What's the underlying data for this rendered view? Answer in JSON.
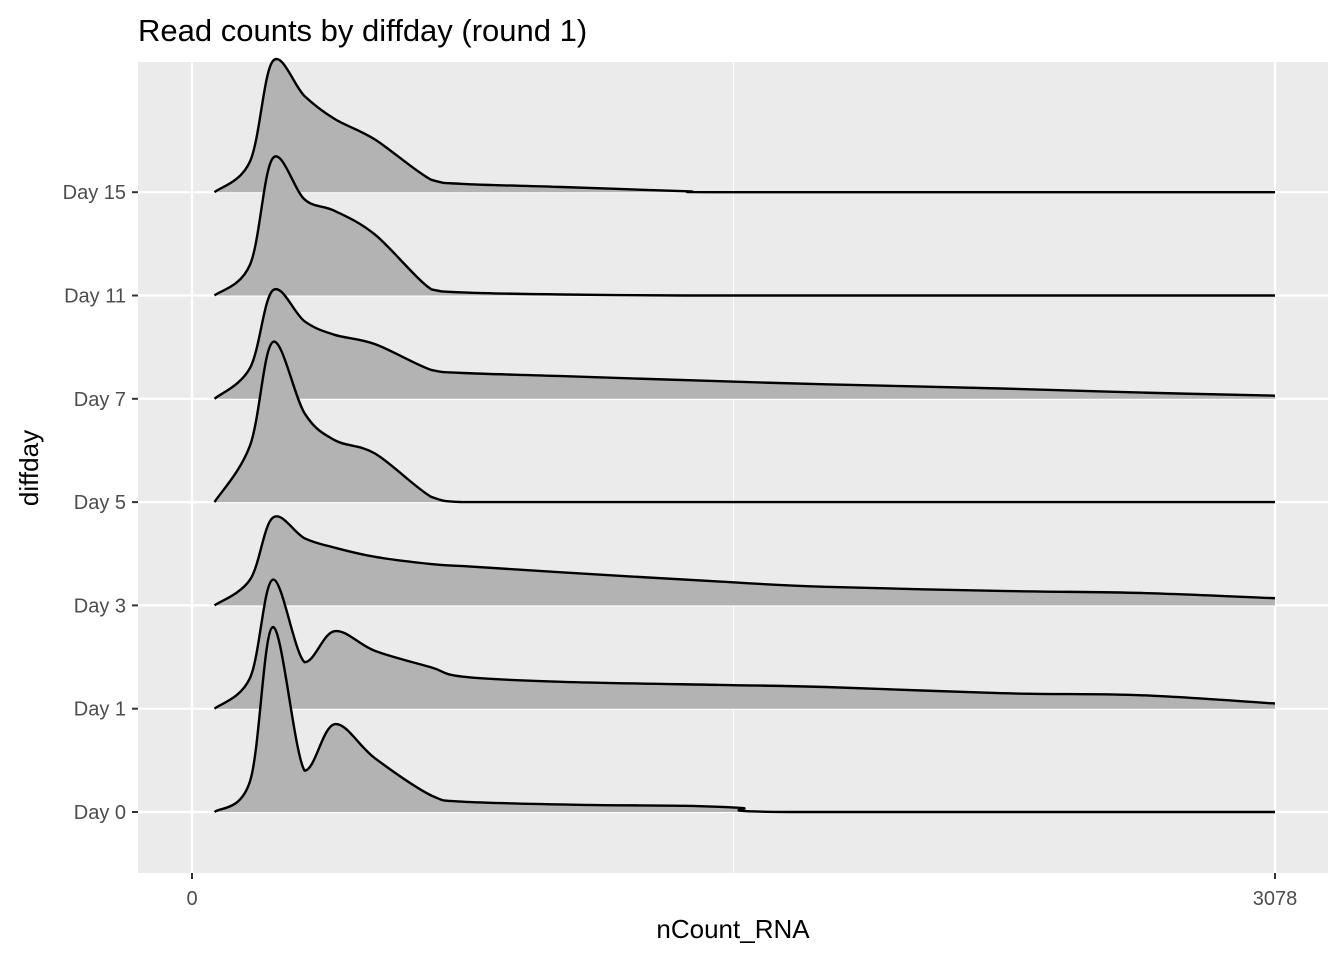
{
  "chart_data": {
    "type": "ridgeline",
    "title": "Read counts by diffday (round 1)",
    "xlabel": "nCount_RNA",
    "ylabel": "diffday",
    "xlim": [
      0,
      3078
    ],
    "x_ticks": [
      0,
      3078
    ],
    "x_tick_labels": [
      "0",
      "3078"
    ],
    "categories": [
      "Day 0",
      "Day 1",
      "Day 3",
      "Day 5",
      "Day 7",
      "Day 11",
      "Day 15"
    ],
    "grid": true,
    "fill_color": "#b3b3b3",
    "line_color": "#000000",
    "panel_color": "#ebebeb",
    "x_unit": "nCount_RNA",
    "height_unit": "category spacings",
    "series": [
      {
        "name": "Day 0",
        "x": [
          64,
          165,
          230,
          320,
          405,
          520,
          680,
          770,
          1100,
          1400,
          1560,
          1700,
          3078
        ],
        "height": [
          0,
          0.3,
          1.79,
          0.4,
          0.85,
          0.52,
          0.16,
          0.1,
          0.07,
          0.06,
          0.04,
          0,
          0
        ]
      },
      {
        "name": "Day 1",
        "x": [
          64,
          165,
          230,
          320,
          405,
          520,
          680,
          770,
          1050,
          1500,
          1800,
          2300,
          2700,
          3078
        ],
        "height": [
          0,
          0.3,
          1.25,
          0.45,
          0.75,
          0.56,
          0.4,
          0.31,
          0.26,
          0.23,
          0.21,
          0.15,
          0.13,
          0.05
        ]
      },
      {
        "name": "Day 3",
        "x": [
          64,
          165,
          230,
          320,
          405,
          520,
          680,
          770,
          1050,
          1500,
          1800,
          2300,
          2700,
          3078
        ],
        "height": [
          0,
          0.25,
          0.85,
          0.65,
          0.56,
          0.47,
          0.4,
          0.38,
          0.32,
          0.23,
          0.18,
          0.14,
          0.12,
          0.07
        ]
      },
      {
        "name": "Day 5",
        "x": [
          64,
          165,
          230,
          320,
          405,
          520,
          680,
          770,
          1000,
          3078
        ],
        "height": [
          0,
          0.55,
          1.55,
          0.86,
          0.6,
          0.47,
          0.05,
          0,
          0,
          0
        ]
      },
      {
        "name": "Day 7",
        "x": [
          64,
          165,
          230,
          320,
          405,
          520,
          680,
          770,
          1050,
          1500,
          1800,
          2300,
          2700,
          3078
        ],
        "height": [
          0,
          0.3,
          1.05,
          0.75,
          0.62,
          0.53,
          0.28,
          0.25,
          0.22,
          0.17,
          0.14,
          0.1,
          0.06,
          0.03
        ]
      },
      {
        "name": "Day 11",
        "x": [
          64,
          165,
          230,
          320,
          405,
          520,
          680,
          770,
          1050,
          1400,
          1560,
          3078
        ],
        "height": [
          0,
          0.3,
          1.33,
          0.93,
          0.82,
          0.59,
          0.06,
          0.03,
          0.01,
          0,
          0,
          0
        ]
      },
      {
        "name": "Day 15",
        "x": [
          64,
          165,
          230,
          320,
          405,
          520,
          680,
          770,
          1050,
          1400,
          1560,
          3078
        ],
        "height": [
          0,
          0.3,
          1.27,
          0.93,
          0.71,
          0.51,
          0.12,
          0.08,
          0.05,
          0.01,
          0,
          0
        ]
      }
    ]
  }
}
